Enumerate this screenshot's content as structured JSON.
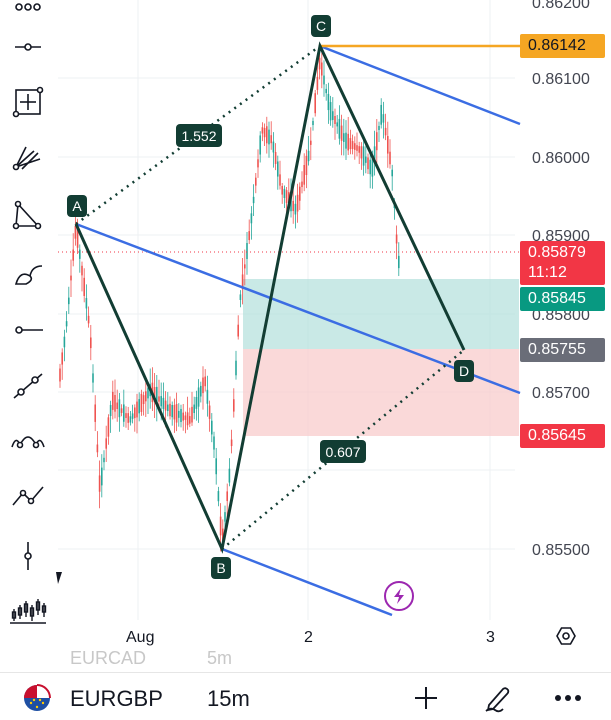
{
  "symbol": "EURGBP",
  "timeframe": "15m",
  "ghost_symbol": "EURCAD",
  "ghost_timeframe": "5m",
  "price_axis": {
    "ticks": [
      "0.86200",
      "0.86100",
      "0.86000",
      "0.85900",
      "0.85800",
      "0.85700",
      "0.85500"
    ]
  },
  "price_tags": {
    "c_level": "0.86142",
    "last_price": "0.85879",
    "countdown": "11:12",
    "green_level": "0.85845",
    "d_level": "0.85755",
    "red_level": "0.85645"
  },
  "time_axis": {
    "labels": [
      "Aug",
      "2",
      "3"
    ]
  },
  "pattern": {
    "points": [
      "A",
      "B",
      "C",
      "D"
    ],
    "ratio_bc": "1.552",
    "ratio_cd": "0.607"
  },
  "colors": {
    "up": "#26a69a",
    "down": "#ef5350",
    "pattern_line": "#123d33",
    "channel": "#3b6de3",
    "c_line": "#f5a623",
    "tag_last": "#f23645",
    "tag_green": "#089981",
    "tag_gray": "#6a6d78"
  },
  "icons": {
    "toolbar": [
      "dots-icon",
      "horizontal-line-icon",
      "measure-icon",
      "fib-fan-icon",
      "triangle-pattern-icon",
      "brush-icon",
      "horizontal-ray-icon",
      "trend-line-icon",
      "head-shoulders-icon",
      "zigzag-icon",
      "vertical-line-icon",
      "candles-icon"
    ],
    "bottom": [
      "flag-icon",
      "plus-icon",
      "pencil-icon",
      "more-icon"
    ]
  }
}
